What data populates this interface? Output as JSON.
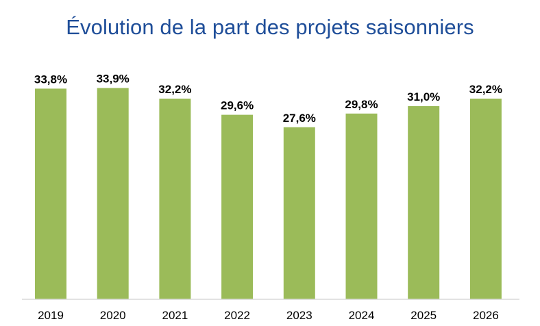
{
  "chart_data": {
    "type": "bar",
    "title": "Évolution de la part des projets saisonniers",
    "categories": [
      "2019",
      "2020",
      "2021",
      "2022",
      "2023",
      "2024",
      "2025",
      "2026"
    ],
    "values": [
      33.8,
      33.9,
      32.2,
      29.6,
      27.6,
      29.8,
      31.0,
      32.2
    ],
    "data_labels": [
      "33,8%",
      "33,9%",
      "32,2%",
      "29,6%",
      "27,6%",
      "29,8%",
      "31,0%",
      "32,2%"
    ],
    "xlabel": "",
    "ylabel": "",
    "ylim": [
      0,
      34
    ],
    "grid": false,
    "legend": "none",
    "bar_color": "#9bbb59",
    "title_color": "#1f4e99"
  }
}
